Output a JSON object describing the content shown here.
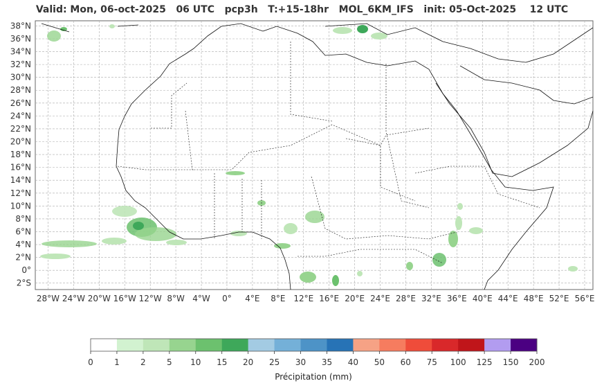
{
  "title": "Valid: Mon, 06-oct-2025   06 UTC   pcp3h   T:+15-18hr   MOL_6KM_IFS   init: 05-Oct-2025    12 UTC",
  "map": {
    "lat_labels": [
      "38°N",
      "36°N",
      "34°N",
      "32°N",
      "30°N",
      "28°N",
      "26°N",
      "24°N",
      "22°N",
      "20°N",
      "18°N",
      "16°N",
      "14°N",
      "12°N",
      "10°N",
      "8°N",
      "6°N",
      "4°N",
      "2°N",
      "0°",
      "2°S"
    ],
    "lat_values": [
      38,
      36,
      34,
      32,
      30,
      28,
      26,
      24,
      22,
      20,
      18,
      16,
      14,
      12,
      10,
      8,
      6,
      4,
      2,
      0,
      -2
    ],
    "lon_labels": [
      "28°W",
      "24°W",
      "20°W",
      "16°W",
      "12°W",
      "8°W",
      "4°W",
      "0°",
      "4°E",
      "8°E",
      "12°E",
      "16°E",
      "20°E",
      "24°E",
      "28°E",
      "32°E",
      "36°E",
      "40°E",
      "44°E",
      "48°E",
      "52°E",
      "56°E"
    ],
    "lon_values": [
      -28,
      -24,
      -20,
      -16,
      -12,
      -8,
      -4,
      0,
      4,
      8,
      12,
      16,
      20,
      24,
      28,
      32,
      36,
      40,
      44,
      48,
      52,
      56
    ],
    "extent": {
      "lon_min": -30,
      "lon_max": 57.3,
      "lat_min": -3,
      "lat_max": 38.8
    },
    "grid": true
  },
  "colorbar": {
    "label": "Précipitation (mm)",
    "ticks": [
      "0",
      "1",
      "2",
      "5",
      "10",
      "15",
      "20",
      "25",
      "30",
      "35",
      "40",
      "50",
      "60",
      "75",
      "100",
      "125",
      "150",
      "200"
    ],
    "colors": [
      "#ffffff",
      "#d2f2d0",
      "#bfe6b8",
      "#97d48f",
      "#6cc16e",
      "#3ea85a",
      "#a3cbe3",
      "#74b0d8",
      "#4d93c7",
      "#2773b6",
      "#f6a285",
      "#f67c5f",
      "#ef4c3a",
      "#d9282a",
      "#c0151a",
      "#b29cf0",
      "#4b0082"
    ]
  }
}
